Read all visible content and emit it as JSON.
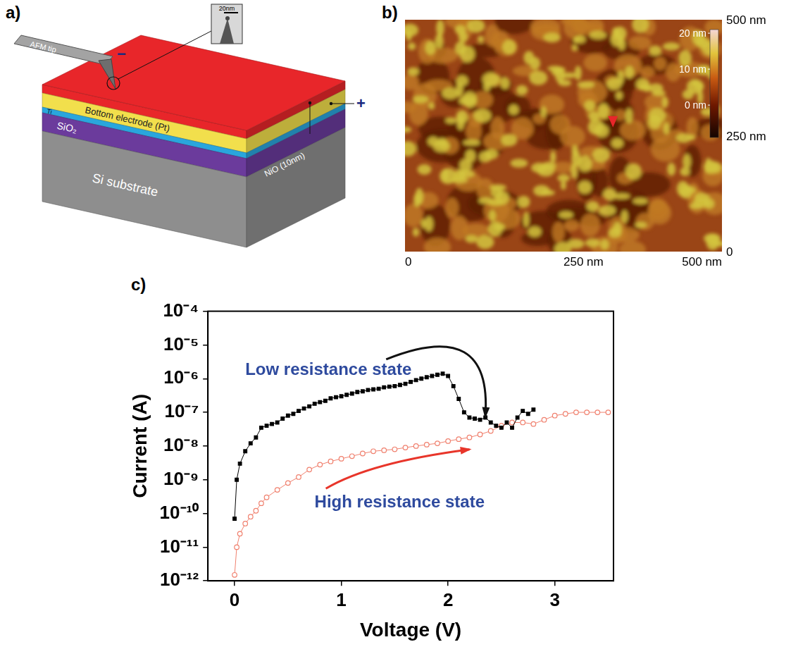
{
  "figure": {
    "panel_a": {
      "letter": "a)",
      "type": "diagram",
      "tip": "AFM tip",
      "inset_scale_bar": "20nm",
      "tip_polarity": "−",
      "electrode_polarity": "+",
      "layers": [
        {
          "name": "NiO (10nm)",
          "color": "#e8262a"
        },
        {
          "name": "Bottom electrode (Pt)",
          "color": "#f2df4c"
        },
        {
          "name": "Ti",
          "color": "#2aa6dc"
        },
        {
          "name": "SiO₂",
          "color": "#6b3b9c"
        },
        {
          "name": "Si substrate",
          "color": "#8e8e8e"
        }
      ]
    },
    "panel_b": {
      "letter": "b)",
      "type": "image",
      "xlim": [
        0,
        500
      ],
      "ylim": [
        0,
        500
      ],
      "xticks": [
        0,
        {
          "value": 250,
          "label": "250 nm"
        },
        {
          "value": 500,
          "label": "500 nm"
        }
      ],
      "yticks": [
        0,
        {
          "value": 250,
          "label": "250 nm"
        },
        {
          "value": 500,
          "label": "500 nm"
        }
      ],
      "colorbar": {
        "range": [
          -9,
          21
        ],
        "ticks": [
          {
            "value": 0,
            "label": "0 nm"
          },
          {
            "value": 10,
            "label": "10 nm"
          },
          {
            "value": 20,
            "label": "20 nm"
          }
        ]
      },
      "pointer": {
        "x": 328,
        "y": 268,
        "color": "#e8262a"
      }
    }
  },
  "chart_data": {
    "letter": "c)",
    "type": "scatter",
    "x_label": "Voltage (V)",
    "y_label": "Current (A)",
    "log": "y",
    "grid": false,
    "xlim": [
      -0.25,
      3.55
    ],
    "ylim": [
      1e-12,
      0.0001
    ],
    "xticks": [
      0,
      1,
      2,
      3
    ],
    "yticks": [
      {
        "value": 1e-12,
        "label": "10⁻¹²"
      },
      {
        "value": 1e-11,
        "label": "10⁻¹¹"
      },
      {
        "value": 1e-10,
        "label": "10⁻¹⁰"
      },
      {
        "value": 1e-09,
        "label": "10⁻⁹"
      },
      {
        "value": 1e-08,
        "label": "10⁻⁸"
      },
      {
        "value": 1e-07,
        "label": "10⁻⁷"
      },
      {
        "value": 1e-06,
        "label": "10⁻⁶"
      },
      {
        "value": 1e-05,
        "label": "10⁻⁵"
      },
      {
        "value": 0.0001,
        "label": "10⁻⁴"
      }
    ],
    "series": [
      {
        "color": "#000000",
        "marker": "square",
        "line_style": "solid",
        "x": [
          0,
          0.02,
          0.05,
          0.1,
          0.15,
          0.2,
          0.25,
          0.3,
          0.35,
          0.4,
          0.45,
          0.5,
          0.55,
          0.6,
          0.65,
          0.7,
          0.75,
          0.8,
          0.85,
          0.9,
          0.95,
          1.0,
          1.05,
          1.1,
          1.15,
          1.2,
          1.25,
          1.3,
          1.35,
          1.4,
          1.45,
          1.5,
          1.55,
          1.6,
          1.65,
          1.7,
          1.75,
          1.8,
          1.85,
          1.9,
          1.95,
          2.0,
          2.05,
          2.1,
          2.15,
          2.2,
          2.25,
          2.3,
          2.35,
          2.4,
          2.45,
          2.5,
          2.55,
          2.6,
          2.65,
          2.7,
          2.75,
          2.8
        ],
        "values": [
          7e-11,
          1e-09,
          3e-09,
          7e-09,
          1.2e-08,
          1.8e-08,
          3.5e-08,
          4e-08,
          4.5e-08,
          5e-08,
          6.5e-08,
          8e-08,
          9e-08,
          1.1e-07,
          1.3e-07,
          1.5e-07,
          1.8e-07,
          2e-07,
          2.2e-07,
          2.6e-07,
          2.8e-07,
          3e-07,
          3.3e-07,
          3.6e-07,
          4e-07,
          4.2e-07,
          4.6e-07,
          4.8e-07,
          5e-07,
          5.5e-07,
          5.8e-07,
          6e-07,
          6.5e-07,
          7e-07,
          8e-07,
          9e-07,
          1e-06,
          1.1e-06,
          1.2e-06,
          1.3e-06,
          1.4e-06,
          1.2e-06,
          6e-07,
          2.5e-07,
          1e-07,
          7e-08,
          6.5e-08,
          6e-08,
          7e-08,
          5e-08,
          4e-08,
          3.5e-08,
          5e-08,
          3.5e-08,
          7e-08,
          1.1e-07,
          9e-08,
          1.2e-07
        ]
      },
      {
        "color": "#f0806e",
        "marker": "open_circle",
        "line_style": "solid",
        "x": [
          0,
          0.02,
          0.05,
          0.1,
          0.15,
          0.2,
          0.25,
          0.3,
          0.4,
          0.5,
          0.6,
          0.7,
          0.8,
          0.9,
          1.0,
          1.1,
          1.2,
          1.3,
          1.4,
          1.5,
          1.6,
          1.7,
          1.8,
          1.9,
          2.0,
          2.1,
          2.2,
          2.3,
          2.4,
          2.5,
          2.6,
          2.7,
          2.8,
          2.9,
          3.0,
          3.1,
          3.2,
          3.3,
          3.4,
          3.5
        ],
        "values": [
          1.5e-12,
          1e-11,
          2.5e-11,
          5e-11,
          8e-11,
          1.2e-10,
          2e-10,
          3e-10,
          5e-10,
          8e-10,
          1.2e-09,
          2e-09,
          2.8e-09,
          3.5e-09,
          4.2e-09,
          5e-09,
          6e-09,
          7e-09,
          7.5e-09,
          8e-09,
          9e-09,
          1e-08,
          1.1e-08,
          1.2e-08,
          1.4e-08,
          1.6e-08,
          1.8e-08,
          2.2e-08,
          2.8e-08,
          4e-08,
          5e-08,
          5e-08,
          4.5e-08,
          6e-08,
          8e-08,
          9e-08,
          1e-07,
          1e-07,
          1e-07,
          1e-07
        ]
      }
    ],
    "annotations": [
      {
        "text": "Low resistance state",
        "color": "#2e4a9e"
      },
      {
        "text": "High resistance state",
        "color": "#2e4a9e"
      }
    ]
  }
}
